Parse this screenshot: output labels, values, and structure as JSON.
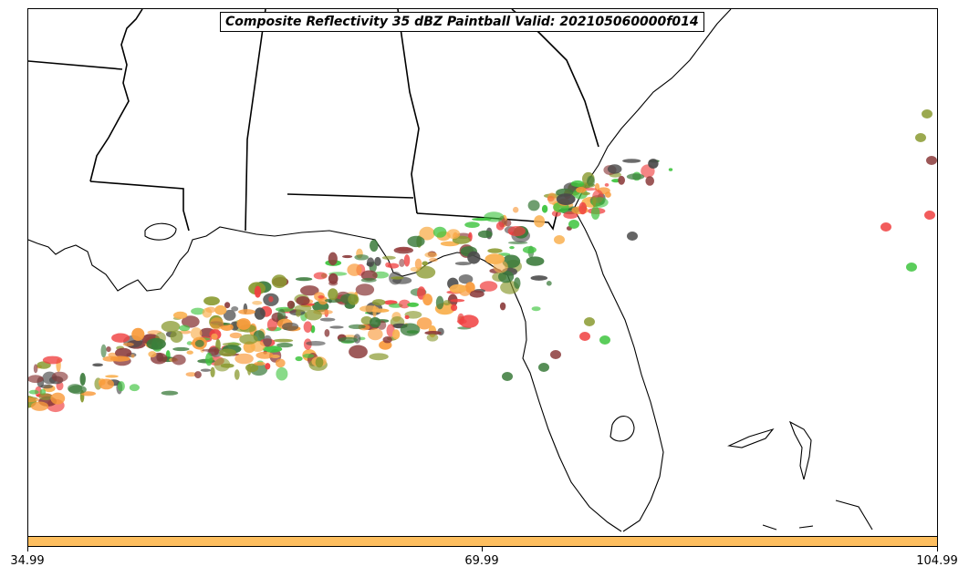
{
  "title": "Composite Reflectivity 35 dBZ Paintball Valid: 202105060000f014",
  "colorbar": {
    "color": "#fdbe5f",
    "ticks": [
      "34.99",
      "69.99",
      "104.99"
    ]
  },
  "paint_colors": {
    "orange": "#f99a3a",
    "light_orange": "#f9b050",
    "red": "#f04040",
    "green": "#3ec43e",
    "dark_gray": "#4a4a4a",
    "brown": "#8b3a3a",
    "olive": "#8a9a30",
    "dark_green": "#3a7a3a"
  }
}
